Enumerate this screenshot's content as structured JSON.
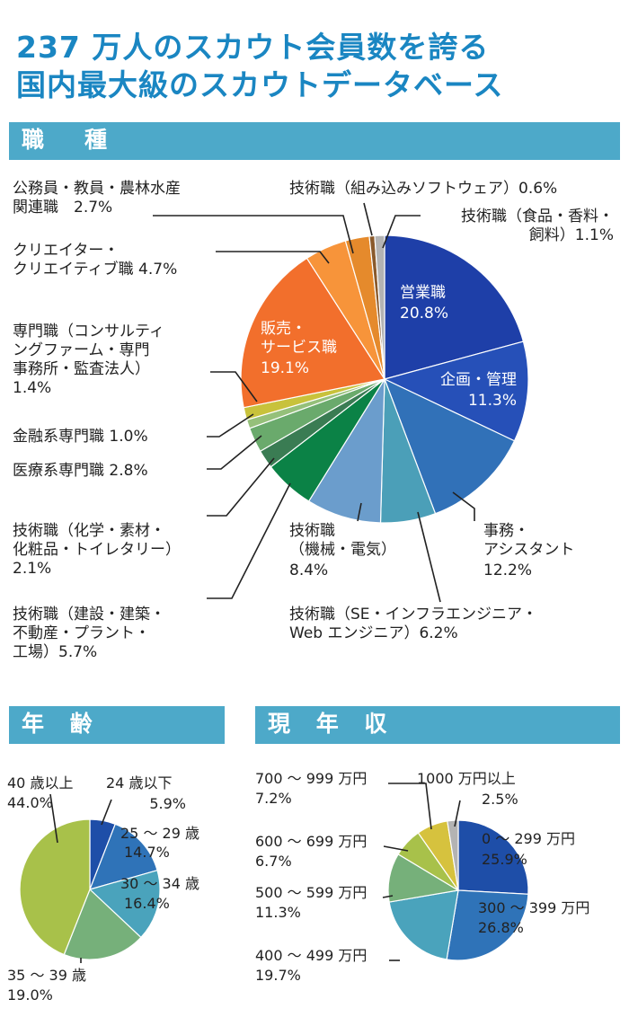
{
  "headline": {
    "line1": "237 万人のスカウト会員数を誇る",
    "line2": "国内最大級のスカウトデータベース"
  },
  "chart_data": [
    {
      "type": "pie",
      "title": "職　種",
      "slices": [
        {
          "label": [
            "営業職"
          ],
          "value": 20.8,
          "pct": "20.8%",
          "color": "#1e3fa8"
        },
        {
          "label": [
            "企画・管理"
          ],
          "value": 11.3,
          "pct": "11.3%",
          "color": "#2650b8"
        },
        {
          "label": [
            "事務・",
            "アシスタント"
          ],
          "value": 12.2,
          "pct": "12.2%",
          "color": "#3171b8"
        },
        {
          "label": [
            "技術職（SE・インフラエンジニア・",
            "Web エンジニア）6.2%"
          ],
          "value": 6.2,
          "pct": "6.2%",
          "color": "#4b9fb8"
        },
        {
          "label": [
            "技術職",
            "（機械・電気）"
          ],
          "value": 8.4,
          "pct": "8.4%",
          "color": "#6b9dcc"
        },
        {
          "label": [
            "技術職（建設・建築・",
            "不動産・プラント・",
            "工場）5.7%"
          ],
          "value": 5.7,
          "pct": "5.7%",
          "color": "#0b8246"
        },
        {
          "label": [
            "技術職（化学・素材・",
            "化粧品・トイレタリー）",
            "2.1%"
          ],
          "value": 2.1,
          "pct": "2.1%",
          "color": "#3a7c53"
        },
        {
          "label": [
            "医療系専門職 2.8%"
          ],
          "value": 2.8,
          "pct": "2.8%",
          "color": "#6aaa6c"
        },
        {
          "label": [
            "金融系専門職 1.0%"
          ],
          "value": 1.0,
          "pct": "1.0%",
          "color": "#95c07a"
        },
        {
          "label": [
            "専門職（コンサルティ",
            "ングファーム・専門",
            "事務所・監査法人）",
            "1.4%"
          ],
          "value": 1.4,
          "pct": "1.4%",
          "color": "#c8c23b"
        },
        {
          "label": [
            "販売・",
            "サービス職"
          ],
          "value": 19.1,
          "pct": "19.1%",
          "color": "#f26f2c"
        },
        {
          "label": [
            "クリエイター・",
            "クリエイティブ職 4.7%"
          ],
          "value": 4.7,
          "pct": "4.7%",
          "color": "#f7943a"
        },
        {
          "label": [
            "公務員・教員・農林水産",
            "関連職　2.7%"
          ],
          "value": 2.7,
          "pct": "2.7%",
          "color": "#e58a2c"
        },
        {
          "label": [
            "技術職（組み込みソフトウェア）0.6%"
          ],
          "value": 0.6,
          "pct": "0.6%",
          "color": "#8a5a2c"
        },
        {
          "label": [
            "技術職（食品・香料・",
            "飼料）1.1%"
          ],
          "value": 1.1,
          "pct": "1.1%",
          "color": "#b3b3b3"
        }
      ]
    },
    {
      "type": "pie",
      "title": "年 齢",
      "slices": [
        {
          "label": [
            "24 歳以下"
          ],
          "value": 5.9,
          "pct": "5.9%",
          "color": "#1e4ea8"
        },
        {
          "label": [
            "25 ～ 29 歳"
          ],
          "value": 14.7,
          "pct": "14.7%",
          "color": "#2f73b8"
        },
        {
          "label": [
            "30 ～ 34 歳"
          ],
          "value": 16.4,
          "pct": "16.4%",
          "color": "#4aa3bc"
        },
        {
          "label": [
            "35 ～ 39 歳"
          ],
          "value": 19.0,
          "pct": "19.0%",
          "color": "#76b07a"
        },
        {
          "label": [
            "40 歳以上"
          ],
          "value": 44.0,
          "pct": "44.0%",
          "color": "#a8c14a"
        }
      ]
    },
    {
      "type": "pie",
      "title": "現 年 収",
      "slices": [
        {
          "label": [
            "0 ～ 299 万円"
          ],
          "value": 25.9,
          "pct": "25.9%",
          "color": "#1e4ea8"
        },
        {
          "label": [
            "300 ～ 399 万円"
          ],
          "value": 26.8,
          "pct": "26.8%",
          "color": "#2f73b8"
        },
        {
          "label": [
            "400 ～ 499 万円"
          ],
          "value": 19.7,
          "pct": "19.7%",
          "color": "#4aa3bc"
        },
        {
          "label": [
            "500 ～ 599 万円"
          ],
          "value": 11.3,
          "pct": "11.3%",
          "color": "#76b07a"
        },
        {
          "label": [
            "600 ～ 699 万円"
          ],
          "value": 6.7,
          "pct": "6.7%",
          "color": "#a8c14a"
        },
        {
          "label": [
            "700 ～ 999 万円"
          ],
          "value": 7.2,
          "pct": "7.2%",
          "color": "#d6c23e"
        },
        {
          "label": [
            "1000 万円以上"
          ],
          "value": 2.5,
          "pct": "2.5%",
          "color": "#b3b3b3"
        }
      ]
    }
  ]
}
